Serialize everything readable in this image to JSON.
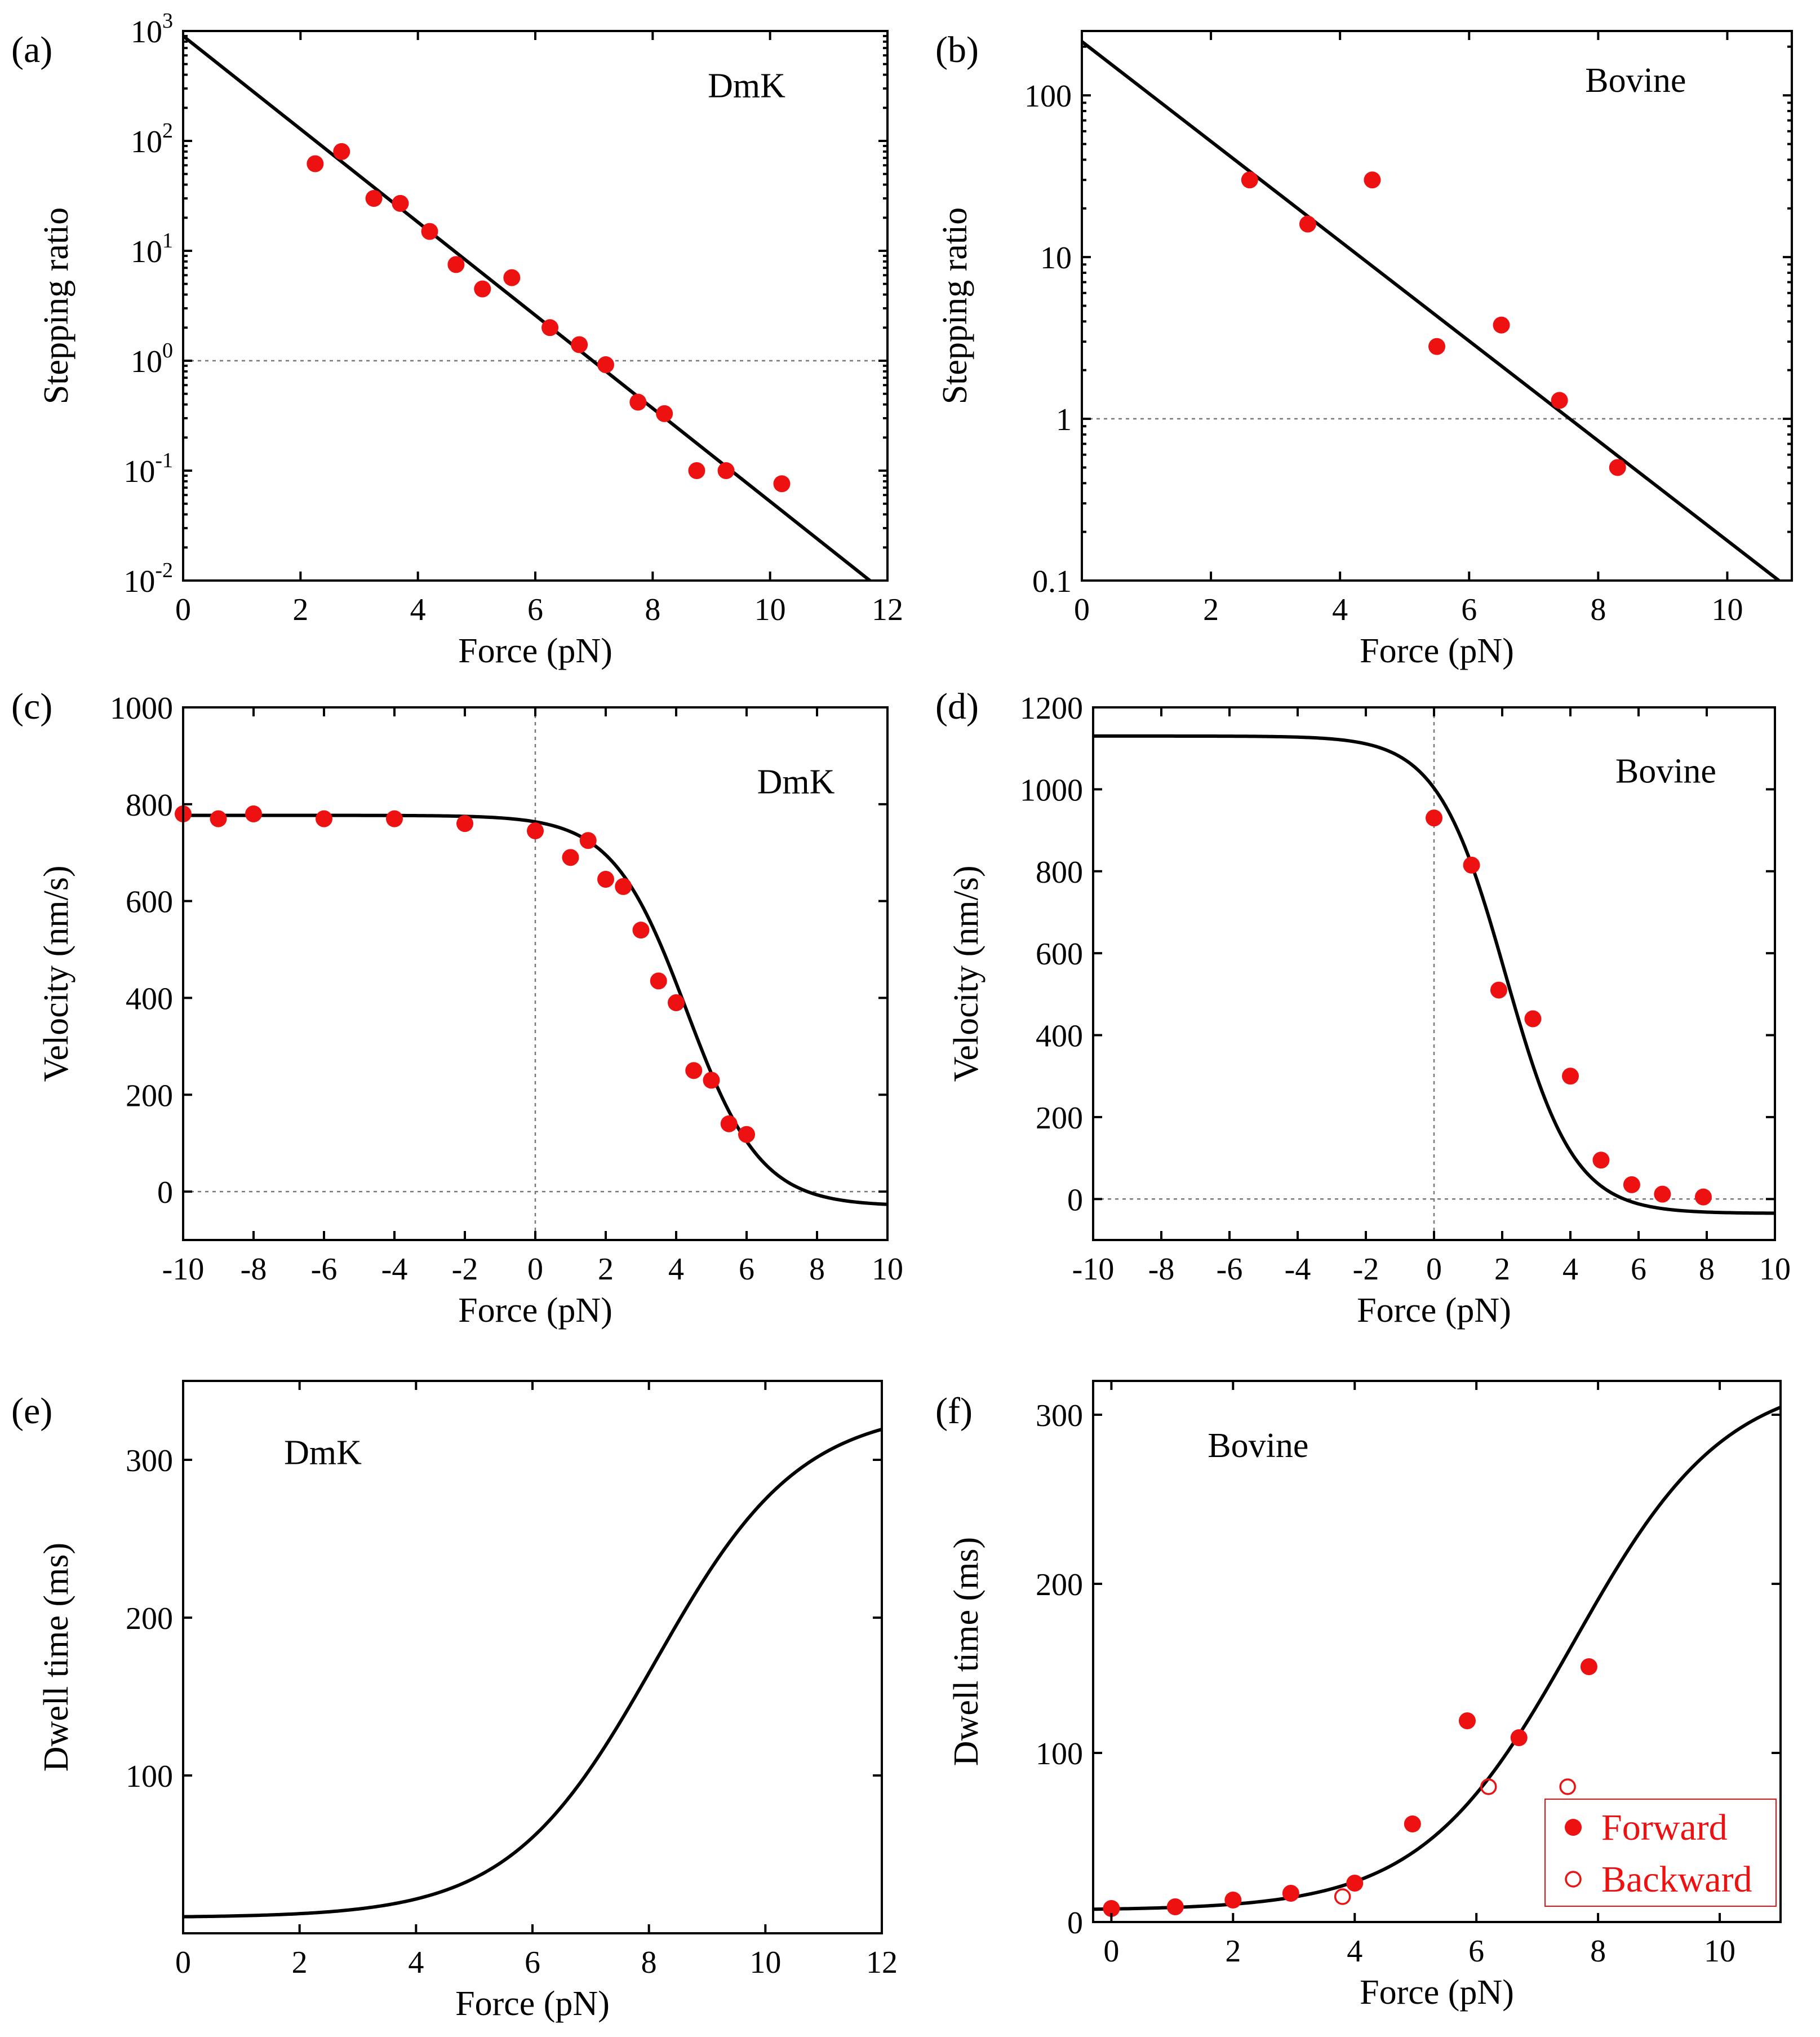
{
  "chart_data": [
    {
      "id": "a",
      "type": "scatter",
      "panel_label": "(a)",
      "annotation": "DmK",
      "xlabel": "Force (pN)",
      "ylabel": "Stepping ratio",
      "xscale": "linear",
      "yscale": "log",
      "xlim": [
        0,
        12
      ],
      "ylim": [
        0.01,
        1000
      ],
      "xticks": [
        0,
        2,
        4,
        6,
        8,
        10,
        12
      ],
      "xtick_labels": [
        "0",
        "2",
        "4",
        "6",
        "8",
        "10",
        "12"
      ],
      "yticks": [
        0.01,
        0.1,
        1,
        10,
        100,
        1000
      ],
      "ytick_labels": [
        {
          "base": "10",
          "exp": "-2"
        },
        {
          "base": "10",
          "exp": "-1"
        },
        {
          "base": "10",
          "exp": "0"
        },
        {
          "base": "10",
          "exp": "1"
        },
        {
          "base": "10",
          "exp": "2"
        },
        {
          "base": "10",
          "exp": "3"
        }
      ],
      "reference_lines": [
        {
          "axis": "y",
          "value": 1
        }
      ],
      "series": [
        {
          "name": "data",
          "marker": "filled-circle",
          "x": [
            2.25,
            2.7,
            3.25,
            3.7,
            4.2,
            4.65,
            5.1,
            5.6,
            6.25,
            6.75,
            7.2,
            7.75,
            8.2,
            8.75,
            9.25,
            10.2
          ],
          "y": [
            62,
            80,
            30,
            27,
            15,
            7.5,
            4.5,
            5.7,
            2.0,
            1.4,
            0.92,
            0.42,
            0.33,
            0.1,
            0.1,
            0.076
          ]
        }
      ],
      "fit": {
        "kind": "log-linear",
        "x": [
          0,
          11.7
        ],
        "y": [
          900,
          0.01
        ]
      }
    },
    {
      "id": "b",
      "type": "scatter",
      "panel_label": "(b)",
      "annotation": "Bovine",
      "xlabel": "Force (pN)",
      "ylabel": "Stepping ratio",
      "xscale": "linear",
      "yscale": "log",
      "xlim": [
        0,
        11
      ],
      "ylim": [
        0.1,
        250
      ],
      "xticks": [
        0,
        2,
        4,
        6,
        8,
        10
      ],
      "xtick_labels": [
        "0",
        "2",
        "4",
        "6",
        "8",
        "10"
      ],
      "yticks": [
        0.1,
        1,
        10,
        100
      ],
      "ytick_labels": [
        "0.1",
        "1",
        "10",
        "100"
      ],
      "reference_lines": [
        {
          "axis": "y",
          "value": 1
        }
      ],
      "series": [
        {
          "name": "data",
          "marker": "filled-circle",
          "x": [
            2.6,
            3.5,
            4.5,
            5.5,
            6.5,
            7.4,
            8.3
          ],
          "y": [
            30,
            16,
            30,
            2.8,
            3.8,
            1.3,
            0.5
          ]
        }
      ],
      "fit": {
        "kind": "log-linear",
        "x": [
          0,
          10.8
        ],
        "y": [
          215,
          0.1
        ]
      }
    },
    {
      "id": "c",
      "type": "scatter",
      "panel_label": "(c)",
      "annotation": "DmK",
      "xlabel": "Force (pN)",
      "ylabel": "Velocity (nm/s)",
      "xscale": "linear",
      "yscale": "linear",
      "xlim": [
        -10,
        10
      ],
      "ylim": [
        -100,
        1000
      ],
      "xticks": [
        -10,
        -8,
        -6,
        -4,
        -2,
        0,
        2,
        4,
        6,
        8,
        10
      ],
      "xtick_labels": [
        "-10",
        "-8",
        "-6",
        "-4",
        "-2",
        "0",
        "2",
        "4",
        "6",
        "8",
        "10"
      ],
      "yticks": [
        0,
        200,
        400,
        600,
        800,
        1000
      ],
      "ytick_labels": [
        "0",
        "200",
        "400",
        "600",
        "800",
        "1000"
      ],
      "reference_lines": [
        {
          "axis": "y",
          "value": 0
        },
        {
          "axis": "x",
          "value": 0
        }
      ],
      "series": [
        {
          "name": "data",
          "marker": "filled-circle",
          "x": [
            -10,
            -9,
            -8,
            -6,
            -4,
            -2,
            0,
            1,
            1.5,
            2,
            2.5,
            3,
            3.5,
            4,
            4.5,
            5,
            5.5,
            6
          ],
          "y": [
            780,
            770,
            780,
            770,
            770,
            760,
            745,
            690,
            725,
            645,
            630,
            540,
            435,
            390,
            250,
            230,
            140,
            118
          ]
        }
      ],
      "fit": {
        "kind": "sigmoid",
        "top": 777,
        "bottom": -30,
        "x0": 4.3,
        "k": 0.95
      }
    },
    {
      "id": "d",
      "type": "scatter",
      "panel_label": "(d)",
      "annotation": "Bovine",
      "xlabel": "Force (pN)",
      "ylabel": "Velocity (nm/s)",
      "xscale": "linear",
      "yscale": "linear",
      "xlim": [
        -10,
        10
      ],
      "ylim": [
        -100,
        1200
      ],
      "xticks": [
        -10,
        -8,
        -6,
        -4,
        -2,
        0,
        2,
        4,
        6,
        8,
        10
      ],
      "xtick_labels": [
        "-10",
        "-8",
        "-6",
        "-4",
        "-2",
        "0",
        "2",
        "4",
        "6",
        "8",
        "10"
      ],
      "yticks": [
        0,
        200,
        400,
        600,
        800,
        1000,
        1200
      ],
      "ytick_labels": [
        "0",
        "200",
        "400",
        "600",
        "800",
        "1000",
        "1200"
      ],
      "reference_lines": [
        {
          "axis": "y",
          "value": 0
        },
        {
          "axis": "x",
          "value": 0
        }
      ],
      "series": [
        {
          "name": "data",
          "marker": "filled-circle",
          "x": [
            0,
            1.1,
            1.9,
            2.9,
            4.0,
            4.9,
            5.8,
            6.7,
            7.9
          ],
          "y": [
            930,
            815,
            510,
            440,
            300,
            95,
            35,
            12,
            5
          ]
        }
      ],
      "fit": {
        "kind": "sigmoid",
        "top": 1130,
        "bottom": -35,
        "x0": 2.1,
        "k": 1.0
      }
    },
    {
      "id": "e",
      "type": "line",
      "panel_label": "(e)",
      "annotation": "DmK",
      "xlabel": "Force (pN)",
      "ylabel": "Dwell time (ms)",
      "xscale": "linear",
      "yscale": "linear",
      "xlim": [
        0,
        12
      ],
      "ylim": [
        0,
        350
      ],
      "xticks": [
        0,
        2,
        4,
        6,
        8,
        10,
        12
      ],
      "xtick_labels": [
        "0",
        "2",
        "4",
        "6",
        "8",
        "10",
        "12"
      ],
      "yticks": [
        100,
        200,
        300
      ],
      "ytick_labels": [
        "100",
        "200",
        "300"
      ],
      "reference_lines": [],
      "series": [],
      "fit": {
        "kind": "sigmoid",
        "top": 10,
        "bottom": 333,
        "x0": 8.1,
        "k": 0.8
      }
    },
    {
      "id": "f",
      "type": "scatter",
      "panel_label": "(f)",
      "annotation": "Bovine",
      "xlabel": "Force (pN)",
      "ylabel": "Dwell time (ms)",
      "xscale": "linear",
      "yscale": "linear",
      "xlim": [
        -0.3,
        11
      ],
      "ylim": [
        0,
        320
      ],
      "xticks": [
        0,
        2,
        4,
        6,
        8,
        10
      ],
      "xtick_labels": [
        "0",
        "2",
        "4",
        "6",
        "8",
        "10"
      ],
      "yticks": [
        0,
        100,
        200,
        300
      ],
      "ytick_labels": [
        "0",
        "100",
        "200",
        "300"
      ],
      "reference_lines": [],
      "series": [
        {
          "name": "Forward",
          "marker": "filled-circle",
          "x": [
            0,
            1.05,
            2.0,
            2.95,
            4.0,
            4.95,
            5.85,
            6.7,
            7.85
          ],
          "y": [
            8,
            9,
            13,
            17,
            23,
            58,
            119,
            109,
            151
          ]
        },
        {
          "name": "Backward",
          "marker": "open-circle",
          "x": [
            3.8,
            6.2,
            7.5
          ],
          "y": [
            15,
            80,
            80
          ]
        }
      ],
      "legend": {
        "entries": [
          "Forward",
          "Backward"
        ],
        "position": "bottom-right"
      },
      "fit": {
        "kind": "sigmoid",
        "top": 7,
        "bottom": 324,
        "x0": 7.6,
        "k": 0.8
      }
    }
  ]
}
